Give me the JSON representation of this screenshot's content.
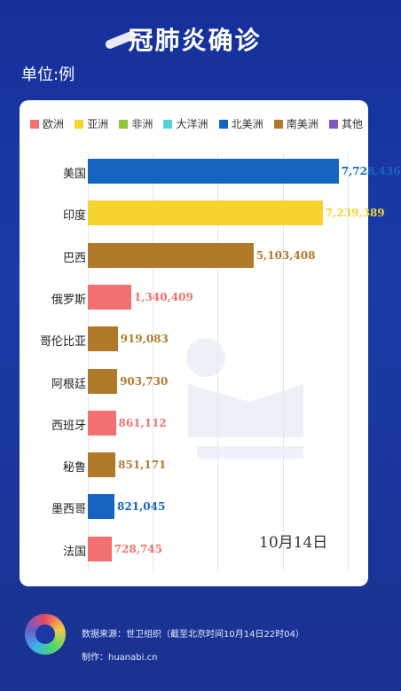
{
  "header": {
    "title": "冠肺炎确诊",
    "unit": "单位:例"
  },
  "legend": [
    {
      "label": "欧洲",
      "color": "#f2706f"
    },
    {
      "label": "亚洲",
      "color": "#f5d330"
    },
    {
      "label": "非洲",
      "color": "#8cc63f"
    },
    {
      "label": "大洋洲",
      "color": "#4fd1d9"
    },
    {
      "label": "北美洲",
      "color": "#1565c0"
    },
    {
      "label": "南美洲",
      "color": "#b07a2a"
    },
    {
      "label": "其他",
      "color": "#7e57c2"
    }
  ],
  "chart_data": {
    "type": "bar",
    "orientation": "horizontal",
    "categories": [
      "美国",
      "印度",
      "巴西",
      "俄罗斯",
      "哥伦比亚",
      "阿根廷",
      "西班牙",
      "秘鲁",
      "墨西哥",
      "法国"
    ],
    "values": [
      7728436,
      7239389,
      5103408,
      1340409,
      919083,
      903730,
      861112,
      851171,
      821045,
      728745
    ],
    "value_labels": [
      "7,728,436",
      "7,239,389",
      "5,103,408",
      "1,340,409",
      "919,083",
      "903,730",
      "861,112",
      "851,171",
      "821,045",
      "728,745"
    ],
    "regions": [
      "北美洲",
      "亚洲",
      "南美洲",
      "欧洲",
      "南美洲",
      "南美洲",
      "欧洲",
      "南美洲",
      "北美洲",
      "欧洲"
    ],
    "xlim": [
      0,
      8200000
    ],
    "grid": true,
    "legend_position": "top"
  },
  "date": "10月14日",
  "footer": {
    "source": "数据来源：世卫组织（截至北京时间10月14日22时04）",
    "producer": "制作：huanabi.cn"
  }
}
